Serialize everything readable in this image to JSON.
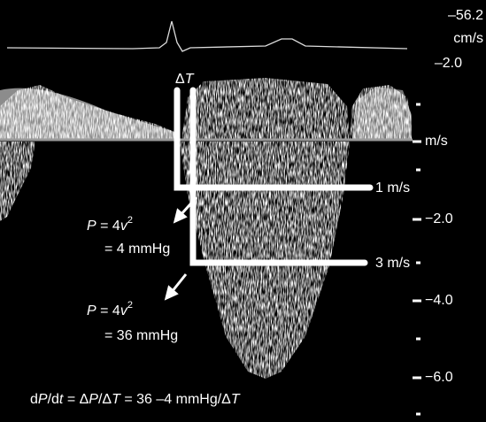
{
  "scale": {
    "top_value": "–56.2",
    "top_unit": "cm/s",
    "top_min": "–2.0",
    "baseline_unit": "m/s",
    "labels": [
      "−2.0",
      "−4.0",
      "−6.0"
    ]
  },
  "markers": {
    "delta_t": [
      "Δ",
      "T"
    ],
    "line_1": "1 m/s",
    "line_3": "3 m/s"
  },
  "equations": [
    {
      "lhs": [
        "P",
        " = 4",
        "v",
        "2"
      ],
      "rhs": "= 4 mmHg"
    },
    {
      "lhs": [
        "P",
        " = 4",
        "v",
        "2"
      ],
      "rhs": "= 36 mmHg"
    }
  ],
  "formula": [
    "d",
    "P",
    "/d",
    "t",
    " = Δ",
    "P",
    "/Δ",
    "T",
    " = 36 –4 mmHg/Δ",
    "T"
  ]
}
